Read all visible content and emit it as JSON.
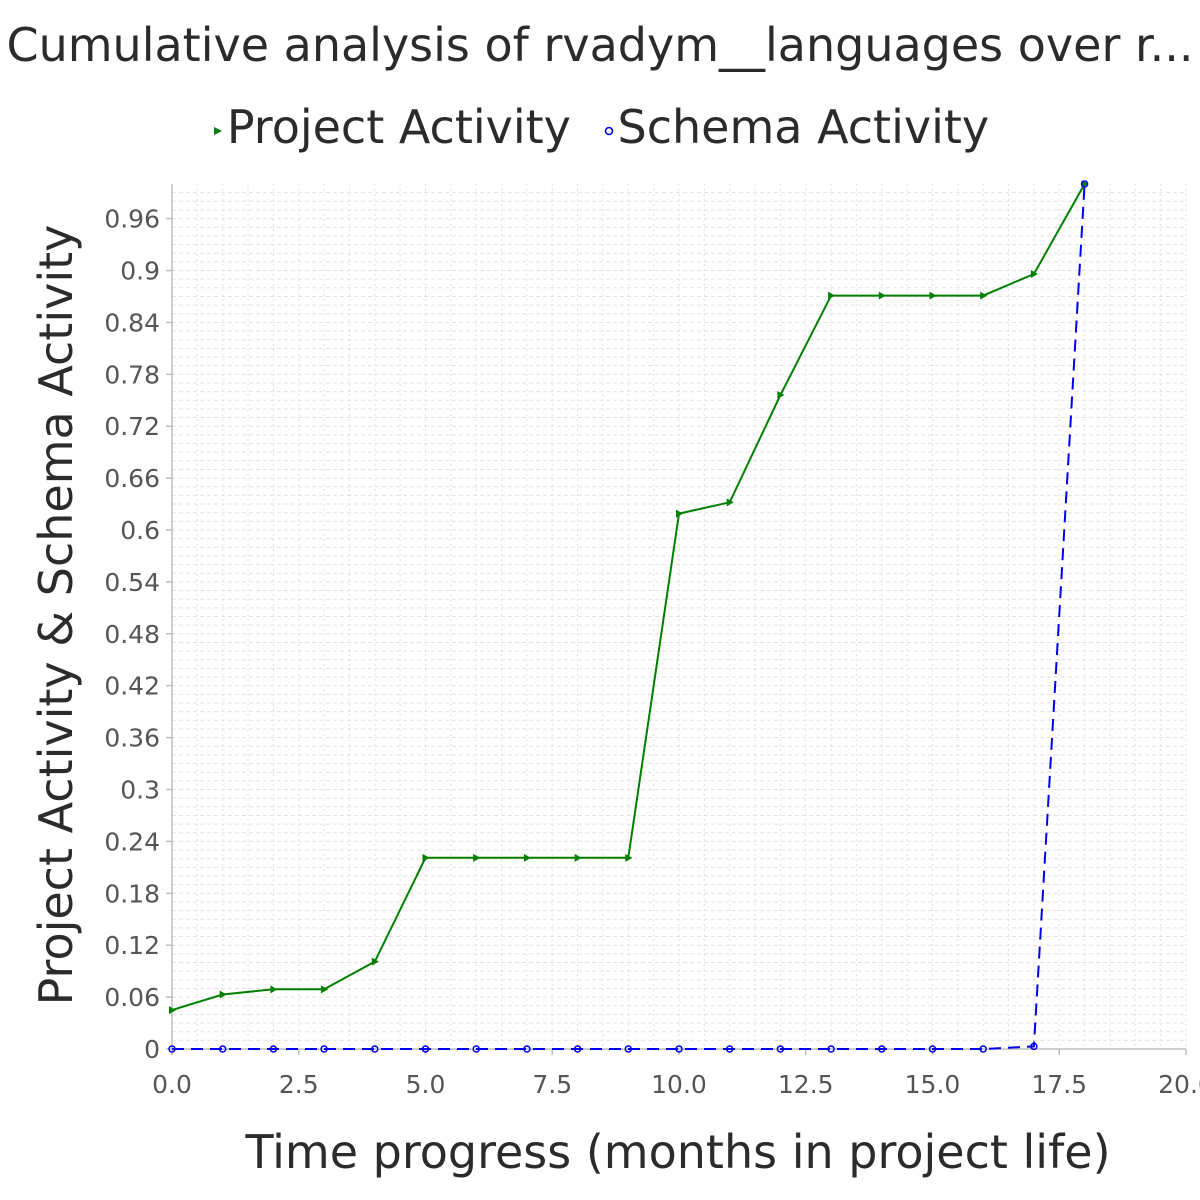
{
  "title": "Cumulative analysis of rvadym__languages over r...",
  "legend": {
    "items": [
      {
        "label": "Project Activity",
        "color": "#008000",
        "marker": "triangle-right"
      },
      {
        "label": "Schema Activity",
        "color": "#0000ee",
        "marker": "circle"
      }
    ]
  },
  "chart_data": {
    "type": "line",
    "title": "Cumulative analysis of rvadym__languages over r...",
    "xlabel": "Time progress (months in project life)",
    "ylabel": "Project Activity & Schema Activity",
    "xlim": [
      0,
      20
    ],
    "ylim": [
      0,
      1
    ],
    "grid": true,
    "legend_position": "top",
    "x_ticks": [
      "0.0",
      "2.5",
      "5.0",
      "7.5",
      "10.0",
      "12.5",
      "15.0",
      "17.5",
      "20.0"
    ],
    "y_ticks": [
      "0",
      "0.06",
      "0.12",
      "0.18",
      "0.24",
      "0.3",
      "0.36",
      "0.42",
      "0.48",
      "0.54",
      "0.6",
      "0.66",
      "0.72",
      "0.78",
      "0.84",
      "0.9",
      "0.96"
    ],
    "x": [
      0,
      1,
      2,
      3,
      4,
      5,
      6,
      7,
      8,
      9,
      10,
      11,
      12,
      13,
      14,
      15,
      16,
      17,
      18
    ],
    "series": [
      {
        "name": "Project Activity",
        "color": "#008000",
        "line_style": "solid",
        "marker": "triangle-right",
        "values": [
          0.045,
          0.063,
          0.069,
          0.069,
          0.101,
          0.221,
          0.221,
          0.221,
          0.221,
          0.221,
          0.619,
          0.632,
          0.756,
          0.871,
          0.871,
          0.871,
          0.871,
          0.896,
          1.0
        ]
      },
      {
        "name": "Schema Activity",
        "color": "#0000ee",
        "line_style": "dashed",
        "marker": "circle",
        "values": [
          0,
          0,
          0,
          0,
          0,
          0,
          0,
          0,
          0,
          0,
          0,
          0,
          0,
          0,
          0,
          0,
          0,
          0.003,
          1.0
        ]
      }
    ]
  }
}
